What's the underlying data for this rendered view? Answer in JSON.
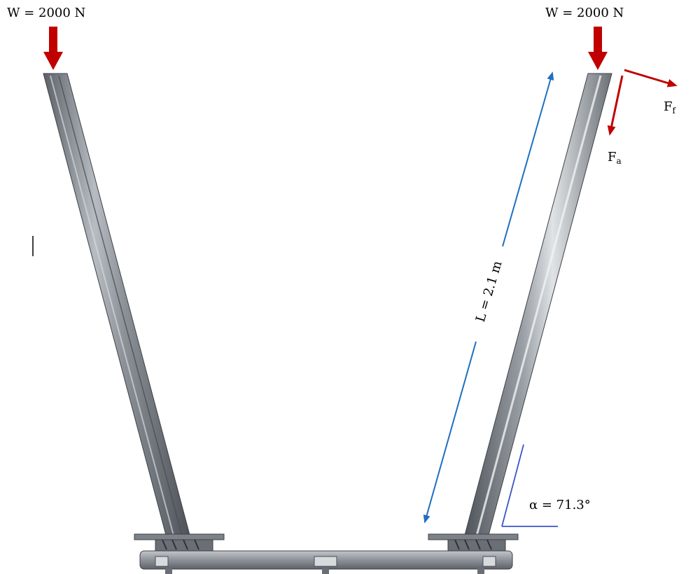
{
  "loads": {
    "left_weight": "W = 2000 N",
    "right_weight": "W = 2000 N",
    "friction_force": {
      "symbol": "F",
      "subscript": "f"
    },
    "axial_force": {
      "symbol": "F",
      "subscript": "a"
    }
  },
  "dimensions": {
    "length": "L = 2.1 m",
    "angle": "α = 71.3°"
  },
  "colors": {
    "force_arrow": "#c00000",
    "dimension_line": "#1f6fc0",
    "angle_line": "#3b55c9",
    "steel": "#8a8f96"
  }
}
